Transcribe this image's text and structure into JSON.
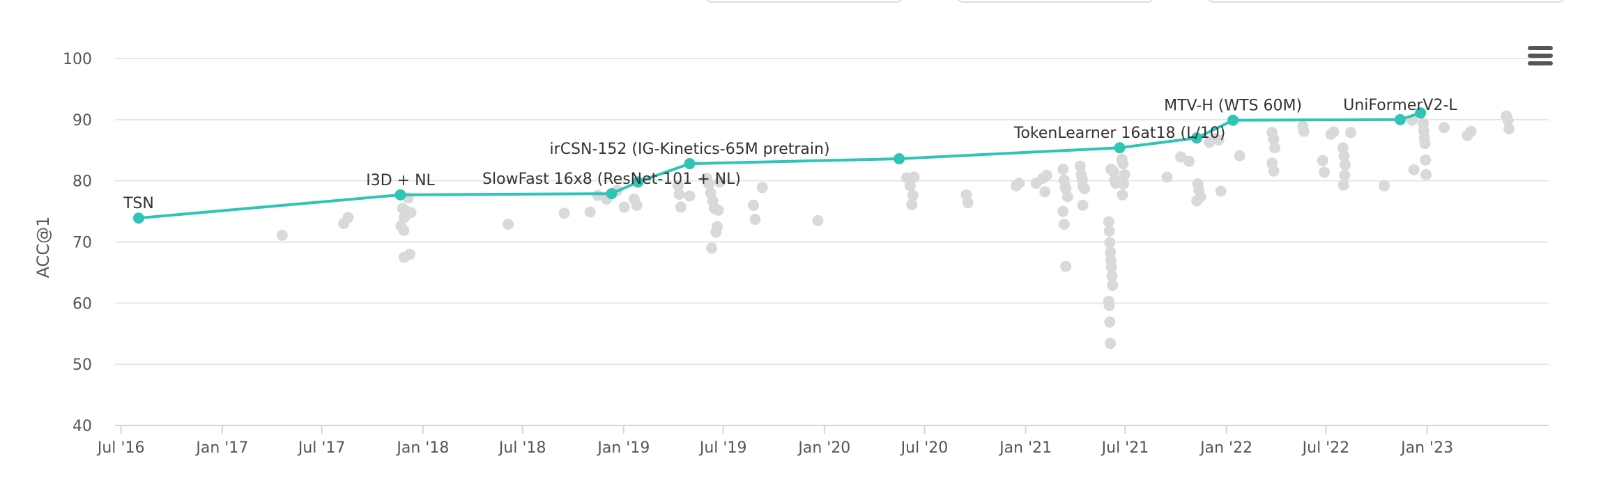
{
  "chart_data": {
    "type": "scatter",
    "title": "",
    "xlabel": "",
    "ylabel": "ACC@1",
    "ylim": [
      40,
      100
    ],
    "yticks": [
      40,
      50,
      60,
      70,
      80,
      90,
      100
    ],
    "xlim": [
      "2016-06-20",
      "2023-08-10"
    ],
    "xticks": [
      {
        "date": "2016-07-01",
        "label": "Jul '16"
      },
      {
        "date": "2017-01-01",
        "label": "Jan '17"
      },
      {
        "date": "2017-07-01",
        "label": "Jul '17"
      },
      {
        "date": "2018-01-01",
        "label": "Jan '18"
      },
      {
        "date": "2018-07-01",
        "label": "Jul '18"
      },
      {
        "date": "2019-01-01",
        "label": "Jan '19"
      },
      {
        "date": "2019-07-01",
        "label": "Jul '19"
      },
      {
        "date": "2020-01-01",
        "label": "Jan '20"
      },
      {
        "date": "2020-07-01",
        "label": "Jul '20"
      },
      {
        "date": "2021-01-01",
        "label": "Jan '21"
      },
      {
        "date": "2021-07-01",
        "label": "Jul '21"
      },
      {
        "date": "2022-01-01",
        "label": "Jan '22"
      },
      {
        "date": "2022-07-01",
        "label": "Jul '22"
      },
      {
        "date": "2023-01-01",
        "label": "Jan '23"
      }
    ],
    "grid": true,
    "colors": {
      "sota": "#2ec4b6",
      "others": "#d9d9d9",
      "grid": "#e6e6e6",
      "axis": "#ccd6eb"
    },
    "series": [
      {
        "role": "sota",
        "points": [
          {
            "date": "2016-08-02",
            "value": 73.9,
            "label": "TSN"
          },
          {
            "date": "2017-11-21",
            "value": 77.7,
            "label": "I3D + NL"
          },
          {
            "date": "2018-12-10",
            "value": 77.9,
            "label": "SlowFast 16x8 (ResNet-101 + NL)"
          },
          {
            "date": "2019-01-27",
            "value": 79.8,
            "label": ""
          },
          {
            "date": "2019-05-01",
            "value": 82.8,
            "label": "irCSN-152 (IG-Kinetics-65M pretrain)"
          },
          {
            "date": "2020-05-16",
            "value": 83.6,
            "label": ""
          },
          {
            "date": "2021-06-21",
            "value": 85.4,
            "label": "TokenLearner 16at18 (L/10)"
          },
          {
            "date": "2021-11-08",
            "value": 87.0,
            "label": ""
          },
          {
            "date": "2022-01-13",
            "value": 89.9,
            "label": "MTV-H (WTS 60M)"
          },
          {
            "date": "2022-11-13",
            "value": 90.0,
            "label": "UniFormerV2-L"
          },
          {
            "date": "2022-12-20",
            "value": 91.1,
            "label": ""
          }
        ]
      },
      {
        "role": "others",
        "points": [
          [
            "2017-04-20",
            71.1
          ],
          [
            "2017-08-10",
            73.0
          ],
          [
            "2017-08-18",
            74.0
          ],
          [
            "2017-11-22",
            72.6
          ],
          [
            "2017-11-25",
            75.5
          ],
          [
            "2017-11-28",
            74.0
          ],
          [
            "2017-12-02",
            75.0
          ],
          [
            "2017-12-05",
            77.2
          ],
          [
            "2017-11-27",
            71.9
          ],
          [
            "2017-11-28",
            67.5
          ],
          [
            "2017-12-08",
            68.0
          ],
          [
            "2017-12-10",
            74.8
          ],
          [
            "2018-06-05",
            72.9
          ],
          [
            "2018-09-15",
            74.7
          ],
          [
            "2018-11-01",
            74.9
          ],
          [
            "2018-11-15",
            77.6
          ],
          [
            "2018-12-01",
            77.0
          ],
          [
            "2018-12-20",
            78.4
          ],
          [
            "2019-01-02",
            75.7
          ],
          [
            "2019-01-20",
            77.0
          ],
          [
            "2019-01-25",
            76.0
          ],
          [
            "2019-04-10",
            79.2
          ],
          [
            "2019-04-12",
            77.8
          ],
          [
            "2019-04-15",
            75.7
          ],
          [
            "2019-05-01",
            77.5
          ],
          [
            "2019-06-01",
            80.4
          ],
          [
            "2019-06-05",
            79.5
          ],
          [
            "2019-06-08",
            78.0
          ],
          [
            "2019-06-15",
            75.5
          ],
          [
            "2019-06-20",
            72.5
          ],
          [
            "2019-06-10",
            69.0
          ],
          [
            "2019-06-25",
            79.8
          ],
          [
            "2019-06-22",
            75.2
          ],
          [
            "2019-06-18",
            71.6
          ],
          [
            "2019-06-12",
            76.7
          ],
          [
            "2019-08-25",
            76.0
          ],
          [
            "2019-08-28",
            73.7
          ],
          [
            "2019-09-10",
            78.9
          ],
          [
            "2019-12-20",
            73.5
          ],
          [
            "2020-05-30",
            80.5
          ],
          [
            "2020-06-05",
            79.2
          ],
          [
            "2020-06-10",
            77.6
          ],
          [
            "2020-06-08",
            76.1
          ],
          [
            "2020-06-12",
            80.6
          ],
          [
            "2020-09-15",
            77.7
          ],
          [
            "2020-09-18",
            76.4
          ],
          [
            "2020-12-15",
            79.2
          ],
          [
            "2020-12-20",
            79.6
          ],
          [
            "2021-01-20",
            79.6
          ],
          [
            "2021-02-01",
            80.4
          ],
          [
            "2021-02-05",
            78.2
          ],
          [
            "2021-02-08",
            80.9
          ],
          [
            "2021-03-10",
            81.9
          ],
          [
            "2021-03-12",
            80.1
          ],
          [
            "2021-03-14",
            79.0
          ],
          [
            "2021-03-15",
            78.7
          ],
          [
            "2021-03-18",
            77.4
          ],
          [
            "2021-03-10",
            75.0
          ],
          [
            "2021-03-12",
            72.9
          ],
          [
            "2021-03-15",
            66.0
          ],
          [
            "2021-04-10",
            82.4
          ],
          [
            "2021-04-12",
            81.0
          ],
          [
            "2021-04-14",
            80.2
          ],
          [
            "2021-04-15",
            79.1
          ],
          [
            "2021-04-18",
            78.7
          ],
          [
            "2021-04-15",
            76.0
          ],
          [
            "2021-06-01",
            73.3
          ],
          [
            "2021-06-02",
            71.8
          ],
          [
            "2021-06-03",
            69.9
          ],
          [
            "2021-06-04",
            68.3
          ],
          [
            "2021-06-05",
            67.0
          ],
          [
            "2021-06-06",
            65.9
          ],
          [
            "2021-06-07",
            64.4
          ],
          [
            "2021-06-08",
            62.9
          ],
          [
            "2021-06-01",
            60.3
          ],
          [
            "2021-06-02",
            59.6
          ],
          [
            "2021-06-03",
            56.9
          ],
          [
            "2021-06-04",
            53.4
          ],
          [
            "2021-06-10",
            81.5
          ],
          [
            "2021-06-12",
            80.1
          ],
          [
            "2021-06-14",
            79.6
          ],
          [
            "2021-06-05",
            81.9
          ],
          [
            "2021-06-25",
            83.5
          ],
          [
            "2021-06-27",
            82.8
          ],
          [
            "2021-06-30",
            81.0
          ],
          [
            "2021-06-28",
            79.5
          ],
          [
            "2021-06-26",
            77.7
          ],
          [
            "2021-09-15",
            80.6
          ],
          [
            "2021-10-10",
            83.9
          ],
          [
            "2021-10-25",
            83.2
          ],
          [
            "2021-11-10",
            79.5
          ],
          [
            "2021-11-12",
            78.5
          ],
          [
            "2021-11-15",
            77.4
          ],
          [
            "2021-11-08",
            76.7
          ],
          [
            "2021-12-01",
            86.3
          ],
          [
            "2021-12-10",
            86.9
          ],
          [
            "2021-12-18",
            86.7
          ],
          [
            "2021-12-22",
            78.3
          ],
          [
            "2022-01-25",
            84.1
          ],
          [
            "2022-03-25",
            87.9
          ],
          [
            "2022-03-28",
            86.8
          ],
          [
            "2022-03-30",
            85.4
          ],
          [
            "2022-03-25",
            82.9
          ],
          [
            "2022-03-28",
            81.6
          ],
          [
            "2022-05-20",
            88.9
          ],
          [
            "2022-05-22",
            88.1
          ],
          [
            "2022-06-25",
            83.3
          ],
          [
            "2022-06-28",
            81.4
          ],
          [
            "2022-07-10",
            87.6
          ],
          [
            "2022-07-15",
            88.0
          ],
          [
            "2022-08-01",
            85.4
          ],
          [
            "2022-08-03",
            84.0
          ],
          [
            "2022-08-05",
            82.6
          ],
          [
            "2022-08-04",
            80.9
          ],
          [
            "2022-08-02",
            79.3
          ],
          [
            "2022-08-15",
            87.9
          ],
          [
            "2022-10-15",
            79.2
          ],
          [
            "2022-12-05",
            89.9
          ],
          [
            "2022-12-08",
            81.8
          ],
          [
            "2022-12-25",
            89.4
          ],
          [
            "2022-12-26",
            88.2
          ],
          [
            "2022-12-27",
            87.0
          ],
          [
            "2022-12-28",
            86.1
          ],
          [
            "2022-12-29",
            83.4
          ],
          [
            "2022-12-30",
            81.0
          ],
          [
            "2023-02-01",
            88.7
          ],
          [
            "2023-03-15",
            87.4
          ],
          [
            "2023-03-22",
            88.1
          ],
          [
            "2023-05-25",
            90.6
          ],
          [
            "2023-05-28",
            89.9
          ],
          [
            "2023-05-30",
            88.5
          ]
        ]
      }
    ]
  }
}
